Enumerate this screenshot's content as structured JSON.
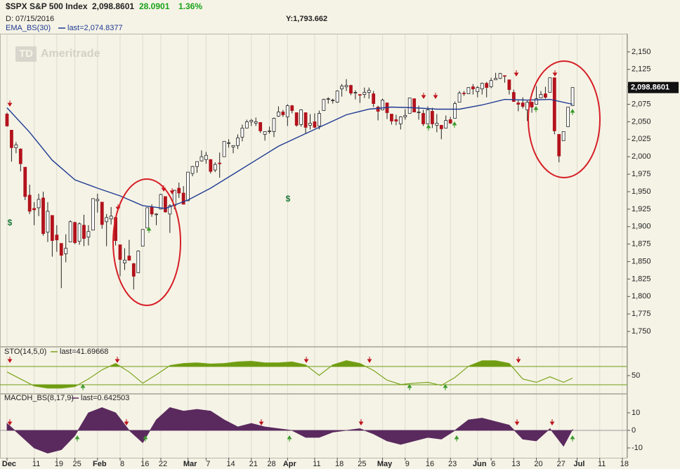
{
  "header": {
    "symbol": "$SPX S&P 500 Index",
    "last": "2,098.8601",
    "change": "28.0901",
    "change_pct": "1.36%",
    "date": "D: 07/15/2016",
    "cursor_y": "Y:1,793.662",
    "watermark_logo": "TD",
    "watermark": "Ameritrade"
  },
  "chart_data": [
    {
      "type": "candlestick",
      "xlim": [
        -1.55,
        137.1
      ],
      "ylim": [
        1729,
        2176
      ],
      "yticks": [
        {
          "value": 1750,
          "label": "1,750"
        },
        {
          "value": 1775,
          "label": "1,775"
        },
        {
          "value": 1800,
          "label": "1,800"
        },
        {
          "value": 1825,
          "label": "1,825"
        },
        {
          "value": 1850,
          "label": "1,850"
        },
        {
          "value": 1875,
          "label": "1,875"
        },
        {
          "value": 1900,
          "label": "1,900"
        },
        {
          "value": 1925,
          "label": "1,925"
        },
        {
          "value": 1950,
          "label": "1,950"
        },
        {
          "value": 1975,
          "label": "1,975"
        },
        {
          "value": 2000,
          "label": "2,000"
        },
        {
          "value": 2025,
          "label": "2,025"
        },
        {
          "value": 2050,
          "label": "2,050"
        },
        {
          "value": 2075,
          "label": "2,075"
        },
        {
          "value": 2100,
          "label": "2,100"
        },
        {
          "value": 2125,
          "label": "2,125"
        },
        {
          "value": 2150,
          "label": "2,150"
        }
      ],
      "up_color": "#ffffff",
      "down_color": "#b3121c",
      "open": [
        2061,
        2038,
        2013,
        2011,
        1985,
        1945,
        1926,
        1927,
        1941,
        1892,
        1916,
        1888,
        1876,
        1861,
        1878,
        1906,
        1879,
        1902,
        1885,
        1895,
        1937,
        1935,
        1907,
        1911,
        1913,
        1874,
        1848,
        1858,
        1847,
        1834,
        1872,
        1898,
        1928,
        1917,
        1925,
        1943,
        1918,
        1930,
        1955,
        1948,
        1937,
        1976,
        1986,
        1994,
        1996,
        1996,
        1981,
        1991,
        2000,
        2020,
        2014,
        2016,
        2028,
        2041,
        2050,
        2048,
        2049,
        2032,
        2037,
        2036,
        2058,
        2064,
        2057,
        2073,
        2063,
        2046,
        2063,
        2045,
        2050,
        2044,
        2066,
        2083,
        2081,
        2078,
        2097,
        2100,
        2102,
        2092,
        2089,
        2089,
        2092,
        2090,
        2071,
        2067,
        2077,
        2061,
        2053,
        2047,
        2057,
        2062,
        2083,
        2064,
        2062,
        2047,
        2065,
        2045,
        2045,
        2041,
        2053,
        2055,
        2078,
        2091,
        2090,
        2100,
        2093,
        2097,
        2105,
        2100,
        2110,
        2112,
        2116,
        2110,
        2092,
        2077,
        2077,
        2067,
        2078,
        2075,
        2084,
        2090,
        2092,
        2113,
        2032,
        2023,
        2043,
        2073
      ],
      "high": [
        2063,
        2038,
        2021,
        2012,
        1985,
        1960,
        1935,
        1947,
        1950,
        1935,
        1916,
        1902,
        1876,
        1889,
        1909,
        1907,
        1906,
        1917,
        1902,
        1940,
        1947,
        1935,
        1918,
        1928,
        1913,
        1874,
        1869,
        1881,
        1848,
        1866,
        1896,
        1927,
        1932,
        1919,
        1947,
        1943,
        1932,
        1952,
        1963,
        1958,
        1978,
        1987,
        1993,
        2009,
        2007,
        1996,
        1992,
        2006,
        2022,
        2025,
        2016,
        2032,
        2046,
        2053,
        2054,
        2056,
        2049,
        2036,
        2043,
        2056,
        2072,
        2067,
        2075,
        2074,
        2063,
        2068,
        2063,
        2061,
        2062,
        2066,
        2083,
        2085,
        2083,
        2095,
        2104,
        2111,
        2103,
        2095,
        2089,
        2099,
        2099,
        2094,
        2073,
        2083,
        2077,
        2061,
        2060,
        2058,
        2068,
        2084,
        2083,
        2073,
        2067,
        2072,
        2070,
        2061,
        2045,
        2059,
        2057,
        2079,
        2094,
        2094,
        2099,
        2104,
        2101,
        2106,
        2107,
        2113,
        2120,
        2120,
        2116,
        2110,
        2096,
        2081,
        2085,
        2080,
        2079,
        2101,
        2094,
        2100,
        2113,
        2113,
        2032,
        2036,
        2071,
        2099
      ],
      "low": [
        2043,
        1993,
        2005,
        1979,
        1938,
        1918,
        1902,
        1915,
        1887,
        1878,
        1857,
        1864,
        1812,
        1849,
        1878,
        1875,
        1874,
        1872,
        1873,
        1895,
        1920,
        1897,
        1872,
        1903,
        1873,
        1829,
        1838,
        1851,
        1810,
        1834,
        1872,
        1898,
        1914,
        1902,
        1925,
        1920,
        1891,
        1925,
        1941,
        1932,
        1937,
        1972,
        1977,
        1993,
        1990,
        1976,
        1978,
        1970,
        2000,
        2013,
        2005,
        2011,
        2022,
        2041,
        2044,
        2044,
        2034,
        2023,
        2033,
        2028,
        2057,
        2057,
        2044,
        2062,
        2043,
        2043,
        2033,
        2039,
        2041,
        2039,
        2066,
        2076,
        2076,
        2077,
        2086,
        2094,
        2088,
        2082,
        2077,
        2084,
        2083,
        2071,
        2052,
        2067,
        2054,
        2046,
        2045,
        2039,
        2053,
        2062,
        2064,
        2053,
        2044,
        2047,
        2041,
        2035,
        2025,
        2041,
        2047,
        2055,
        2078,
        2087,
        2090,
        2089,
        2085,
        2089,
        2085,
        2098,
        2110,
        2111,
        2106,
        2089,
        2079,
        2065,
        2069,
        2051,
        2063,
        2075,
        2084,
        2083,
        2092,
        2032,
        1992,
        2023,
        2043,
        2073
      ],
      "close": [
        2044,
        2013,
        2017,
        1990,
        1943,
        1922,
        1924,
        1939,
        1890,
        1922,
        1880,
        1881,
        1859,
        1869,
        1907,
        1877,
        1904,
        1883,
        1893,
        1940,
        1939,
        1903,
        1913,
        1915,
        1880,
        1853,
        1852,
        1852,
        1829,
        1865,
        1896,
        1927,
        1918,
        1918,
        1946,
        1921,
        1930,
        1952,
        1948,
        1932,
        1978,
        1986,
        1993,
        2000,
        2002,
        1979,
        1989,
        1990,
        2022,
        2020,
        2016,
        2027,
        2041,
        2050,
        2052,
        2050,
        2037,
        2036,
        2037,
        2055,
        2064,
        2060,
        2073,
        2066,
        2045,
        2067,
        2042,
        2048,
        2042,
        2062,
        2082,
        2083,
        2081,
        2094,
        2101,
        2102,
        2091,
        2092,
        2088,
        2092,
        2095,
        2076,
        2065,
        2081,
        2063,
        2051,
        2051,
        2057,
        2059,
        2084,
        2064,
        2064,
        2047,
        2067,
        2047,
        2048,
        2040,
        2052,
        2048,
        2076,
        2091,
        2090,
        2099,
        2097,
        2099,
        2105,
        2099,
        2109,
        2112,
        2119,
        2115,
        2096,
        2079,
        2075,
        2072,
        2078,
        2071,
        2083,
        2089,
        2085,
        2113,
        2037,
        2001,
        2036,
        2071,
        2099
      ],
      "series": [
        {
          "name": "EMA_BS(30)",
          "last_label": "last=2,074.8377",
          "color": "#1f3a93",
          "x": [
            0,
            5,
            10,
            15,
            20,
            25,
            30,
            35,
            40,
            45,
            50,
            55,
            60,
            65,
            70,
            75,
            80,
            85,
            90,
            95,
            100,
            105,
            110,
            115,
            120,
            125
          ],
          "values": [
            2070,
            2035,
            1995,
            1967,
            1955,
            1944,
            1930,
            1926,
            1938,
            1955,
            1975,
            1995,
            2015,
            2030,
            2045,
            2060,
            2068,
            2071,
            2070,
            2068,
            2068,
            2074,
            2082,
            2081,
            2082,
            2075
          ]
        }
      ],
      "annotations": [
        "$",
        "$"
      ]
    },
    {
      "type": "line",
      "name": "STO(14,5,0)",
      "last_label": "last=41.69668",
      "color": "#7aa51a",
      "fill": "#6f9c12",
      "xlim": [
        -1.55,
        137.1
      ],
      "ylim": [
        -7.7,
        144.6
      ],
      "yticks": [
        50
      ],
      "levels": [
        20,
        80
      ],
      "x": [
        0,
        3,
        6,
        9,
        12,
        15,
        18,
        21,
        24,
        27,
        30,
        33,
        36,
        39,
        42,
        45,
        48,
        51,
        54,
        57,
        60,
        63,
        66,
        69,
        72,
        75,
        78,
        81,
        84,
        87,
        90,
        93,
        96,
        99,
        102,
        105,
        108,
        111,
        114,
        117,
        120,
        123,
        125
      ],
      "values": [
        62,
        39,
        16,
        9,
        9,
        14,
        39,
        69,
        90,
        62,
        25,
        53,
        83,
        90,
        92,
        88,
        90,
        95,
        97,
        92,
        92,
        95,
        85,
        51,
        85,
        99,
        90,
        67,
        35,
        21,
        25,
        28,
        18,
        44,
        81,
        99,
        99,
        90,
        39,
        28,
        46,
        28,
        42
      ]
    },
    {
      "type": "area",
      "name": "MACDH_BS(8,17,9)",
      "last_label": "last=0.642503",
      "color": "#5a2a5e",
      "xlim": [
        -1.55,
        137.1
      ],
      "ylim": [
        -15.6,
        20.8
      ],
      "yticks": [
        -10,
        0,
        10
      ],
      "x": [
        0,
        3,
        6,
        9,
        12,
        15,
        18,
        21,
        24,
        27,
        30,
        33,
        36,
        39,
        42,
        45,
        48,
        51,
        54,
        57,
        60,
        63,
        66,
        69,
        72,
        75,
        78,
        81,
        84,
        87,
        90,
        93,
        96,
        99,
        102,
        105,
        108,
        111,
        114,
        117,
        120,
        123,
        125
      ],
      "values": [
        4,
        -3,
        -10,
        -13,
        -11,
        -3,
        10,
        13,
        10,
        0,
        -7,
        6,
        13,
        11,
        12,
        11,
        6,
        2,
        4,
        2,
        1,
        0,
        -4,
        -4,
        -1,
        0,
        1,
        -2,
        -6,
        -8,
        -6,
        -4,
        -5,
        0,
        6,
        7,
        5,
        3,
        -5,
        -6,
        1,
        -9,
        0.64
      ],
      "xticks": [
        {
          "value": 0,
          "label": "Dec"
        },
        {
          "value": 6,
          "label": "11"
        },
        {
          "value": 11,
          "label": "19"
        },
        {
          "value": 15,
          "label": "25"
        },
        {
          "value": 20,
          "label": "Feb"
        },
        {
          "value": 25,
          "label": "8"
        },
        {
          "value": 30,
          "label": "16"
        },
        {
          "value": 34,
          "label": "22"
        },
        {
          "value": 40,
          "label": "Mar"
        },
        {
          "value": 44,
          "label": "7"
        },
        {
          "value": 49,
          "label": "14"
        },
        {
          "value": 54,
          "label": "21"
        },
        {
          "value": 58,
          "label": "28"
        },
        {
          "value": 62,
          "label": "Apr"
        },
        {
          "value": 68,
          "label": "11"
        },
        {
          "value": 73,
          "label": "18"
        },
        {
          "value": 78,
          "label": "25"
        },
        {
          "value": 83,
          "label": "May"
        },
        {
          "value": 88,
          "label": "9"
        },
        {
          "value": 93,
          "label": "16"
        },
        {
          "value": 98,
          "label": "23"
        },
        {
          "value": 104,
          "label": "Jun"
        },
        {
          "value": 107,
          "label": "6"
        },
        {
          "value": 112,
          "label": "13"
        },
        {
          "value": 117,
          "label": "20"
        },
        {
          "value": 122,
          "label": "27"
        },
        {
          "value": 126,
          "label": "Jul"
        },
        {
          "value": 131,
          "label": "11"
        },
        {
          "value": 136,
          "label": "18"
        }
      ],
      "grid": true
    }
  ]
}
